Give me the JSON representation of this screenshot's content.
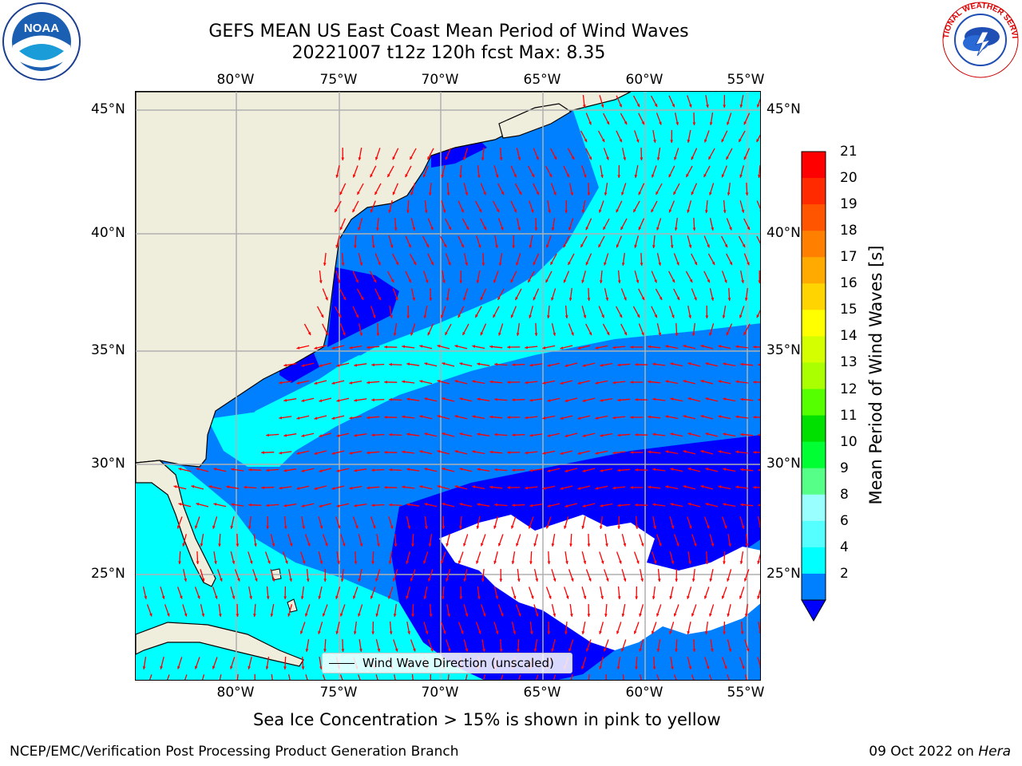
{
  "title": {
    "line1": "GEFS MEAN US East Coast Mean Period of Wind Waves",
    "line2": "20221007 t12z 120h fcst   Max: 8.35"
  },
  "map": {
    "lon_labels": [
      "80°W",
      "75°W",
      "70°W",
      "65°W",
      "60°W",
      "55°W"
    ],
    "lat_labels": [
      "45°N",
      "40°N",
      "35°N",
      "30°N",
      "25°N"
    ],
    "legend_label": "Wind Wave Direction (unscaled)",
    "colors": {
      "land": "#efeddc",
      "ocean_2_4": "#0080ff",
      "ocean_4_6": "#00ffff",
      "ocean_lt2": "#0000ff",
      "grid": "#b0b0b0",
      "arrow": "#ff0000"
    }
  },
  "colorbar": {
    "label": "Mean Period of Wind Waves [s]",
    "ticks": [
      "21",
      "20",
      "19",
      "18",
      "17",
      "16",
      "15",
      "14",
      "13",
      "12",
      "11",
      "10",
      "9",
      "8",
      "6",
      "4",
      "2"
    ],
    "colors": [
      "#ff0000",
      "#ff2a00",
      "#ff5500",
      "#ff7f00",
      "#ffaa00",
      "#ffd400",
      "#ffff00",
      "#d4ff00",
      "#aaff00",
      "#55ff00",
      "#00e000",
      "#00ff33",
      "#55ff88",
      "#99ffff",
      "#55ffff",
      "#00ffff",
      "#0080ff"
    ],
    "under_color": "#0000ff"
  },
  "logos": {
    "noaa_text": "NOAA",
    "nws_text": "NATIONAL WEATHER SERVICE"
  },
  "note": "Sea Ice Concentration > 15% is shown in pink to yellow",
  "footer": {
    "left": "NCEP/EMC/Verification Post Processing Product Generation Branch",
    "right_date": "09 Oct 2022 on ",
    "right_host": "Hera"
  }
}
